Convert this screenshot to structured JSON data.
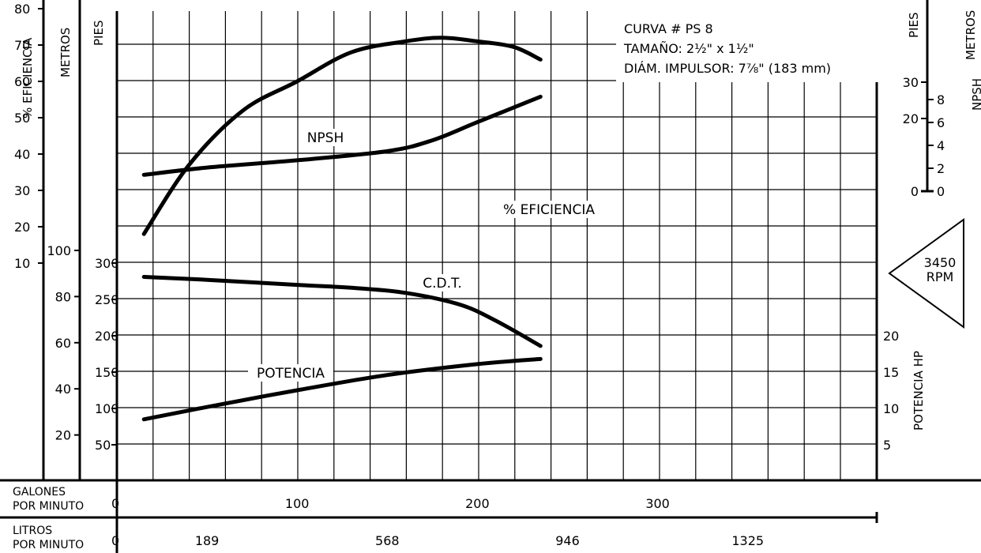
{
  "chart_data": {
    "type": "line",
    "title": "",
    "info_box": [
      "CURVA # PS 8",
      "TAMAÑO: 2½\" x 1½\"",
      "DIÁM. IMPULSOR: 7⅞\" (183 mm)"
    ],
    "rpm_badge": [
      "3450",
      "RPM"
    ],
    "x_axes": [
      {
        "label_line1": "GALONES",
        "label_line2": "POR MINUTO",
        "unit": "gpm",
        "ticks": [
          {
            "v": 0,
            "t": "0"
          },
          {
            "v": 100,
            "t": "100"
          },
          {
            "v": 200,
            "t": "200"
          },
          {
            "v": 300,
            "t": "300"
          }
        ]
      },
      {
        "label_line1": "LITROS",
        "label_line2": "POR MINUTO",
        "unit": "lpm",
        "ticks": [
          {
            "v": 0,
            "t": "0"
          },
          {
            "v": 50,
            "t": "189"
          },
          {
            "v": 150,
            "t": "568"
          },
          {
            "v": 250,
            "t": "946"
          },
          {
            "v": 350,
            "t": "1325"
          }
        ]
      }
    ],
    "y_axes": {
      "efficiency": {
        "label": "% EFICIENCIA",
        "ticks": [
          10,
          20,
          30,
          40,
          50,
          60,
          70,
          80
        ]
      },
      "head_m": {
        "label": "METROS",
        "ticks": [
          20,
          40,
          60,
          80,
          100
        ]
      },
      "head_ft": {
        "label": "PIES",
        "ticks": [
          50,
          100,
          150,
          200,
          250,
          300
        ]
      },
      "npsh_ft": {
        "label": "PIES",
        "ticks": [
          0,
          20,
          30
        ]
      },
      "npsh_m": {
        "label": "METROS",
        "ticks": [
          0,
          2,
          4,
          6,
          8
        ]
      },
      "npsh_title": "NPSH",
      "power": {
        "label": "POTENCIA HP",
        "ticks": [
          5,
          10,
          15,
          20
        ]
      }
    },
    "series": [
      {
        "name": "NPSH",
        "axis": "npsh_ft",
        "x": [
          15,
          50,
          100,
          150,
          175,
          200,
          235
        ],
        "y": [
          4.5,
          6.5,
          8.5,
          11,
          14,
          19,
          26
        ]
      },
      {
        "name": "% EFICIENCIA",
        "axis": "efficiency",
        "x": [
          15,
          40,
          70,
          100,
          130,
          160,
          180,
          200,
          220,
          235
        ],
        "y": [
          18,
          37,
          52,
          60,
          68,
          71,
          72,
          71,
          69.5,
          66
        ]
      },
      {
        "name": "C.D.T.",
        "axis": "head_ft",
        "x": [
          15,
          50,
          100,
          130,
          160,
          190,
          210,
          235
        ],
        "y": [
          281,
          277,
          270,
          266,
          259,
          243,
          221,
          186
        ]
      },
      {
        "name": "POTENCIA",
        "axis": "power",
        "x": [
          15,
          50,
          100,
          150,
          200,
          235
        ],
        "y": [
          8.5,
          10.2,
          12.5,
          14.6,
          16.1,
          16.8
        ]
      }
    ]
  }
}
